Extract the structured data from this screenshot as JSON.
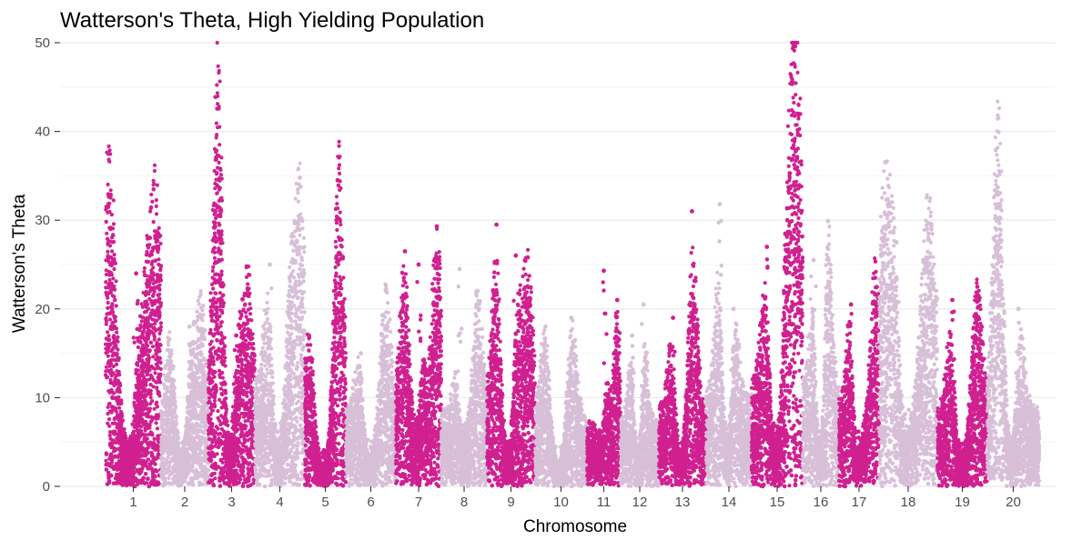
{
  "chart_data": {
    "type": "scatter",
    "title": "Watterson's Theta, High Yielding Population",
    "xlabel": "Chromosome",
    "ylabel": "Watterson's Theta",
    "ylim": [
      0,
      50
    ],
    "y_ticks": [
      0,
      10,
      20,
      30,
      40,
      50
    ],
    "y_minor_ticks": [
      5,
      15,
      25,
      35,
      45
    ],
    "grid": true,
    "legend": "none",
    "point_colors": [
      "#D02090",
      "#D8BFD8"
    ],
    "chromosomes": [
      {
        "label": "1",
        "color": "#D02090",
        "typical": 6,
        "peaks": [
          {
            "pos": 0.05,
            "y": 31.5
          },
          {
            "pos": 0.1,
            "y": 18
          },
          {
            "pos": 0.55,
            "y": 24
          },
          {
            "pos": 0.8,
            "y": 28
          },
          {
            "pos": 0.95,
            "y": 27
          }
        ]
      },
      {
        "label": "2",
        "color": "#D8BFD8",
        "typical": 6,
        "peaks": [
          {
            "pos": 0.2,
            "y": 15
          },
          {
            "pos": 0.6,
            "y": 18
          },
          {
            "pos": 0.85,
            "y": 19
          }
        ]
      },
      {
        "label": "3",
        "color": "#D02090",
        "typical": 7,
        "peaks": [
          {
            "pos": 0.2,
            "y": 37.3
          },
          {
            "pos": 0.25,
            "y": 35.8
          },
          {
            "pos": 0.6,
            "y": 17
          },
          {
            "pos": 0.85,
            "y": 21.5
          }
        ]
      },
      {
        "label": "4",
        "color": "#D8BFD8",
        "typical": 8,
        "peaks": [
          {
            "pos": 0.3,
            "y": 25
          },
          {
            "pos": 0.7,
            "y": 19
          },
          {
            "pos": 0.9,
            "y": 34.8
          }
        ]
      },
      {
        "label": "5",
        "color": "#D02090",
        "typical": 5,
        "peaks": [
          {
            "pos": 0.1,
            "y": 17
          },
          {
            "pos": 0.8,
            "y": 34.5
          },
          {
            "pos": 0.9,
            "y": 19
          }
        ]
      },
      {
        "label": "6",
        "color": "#D8BFD8",
        "typical": 6,
        "peaks": [
          {
            "pos": 0.3,
            "y": 15
          },
          {
            "pos": 0.8,
            "y": 22
          }
        ]
      },
      {
        "label": "7",
        "color": "#D02090",
        "typical": 7,
        "peaks": [
          {
            "pos": 0.2,
            "y": 26.5
          },
          {
            "pos": 0.5,
            "y": 25
          },
          {
            "pos": 0.9,
            "y": 29.3
          }
        ]
      },
      {
        "label": "8",
        "color": "#D8BFD8",
        "typical": 6,
        "peaks": [
          {
            "pos": 0.4,
            "y": 24.5
          },
          {
            "pos": 0.8,
            "y": 22
          }
        ]
      },
      {
        "label": "9",
        "color": "#D02090",
        "typical": 6,
        "peaks": [
          {
            "pos": 0.2,
            "y": 29.5
          },
          {
            "pos": 0.6,
            "y": 26
          },
          {
            "pos": 0.85,
            "y": 25.8
          }
        ]
      },
      {
        "label": "10",
        "color": "#D8BFD8",
        "typical": 5,
        "peaks": [
          {
            "pos": 0.2,
            "y": 18
          },
          {
            "pos": 0.7,
            "y": 19
          }
        ]
      },
      {
        "label": "11",
        "color": "#D02090",
        "typical": 5,
        "peaks": [
          {
            "pos": 0.5,
            "y": 24.3
          },
          {
            "pos": 0.9,
            "y": 21
          }
        ]
      },
      {
        "label": "12",
        "color": "#D8BFD8",
        "typical": 5,
        "peaks": [
          {
            "pos": 0.3,
            "y": 17
          },
          {
            "pos": 0.6,
            "y": 20.5
          }
        ]
      },
      {
        "label": "13",
        "color": "#D02090",
        "typical": 6,
        "peaks": [
          {
            "pos": 0.3,
            "y": 19
          },
          {
            "pos": 0.7,
            "y": 31
          }
        ]
      },
      {
        "label": "14",
        "color": "#D8BFD8",
        "typical": 7,
        "peaks": [
          {
            "pos": 0.3,
            "y": 31.8
          },
          {
            "pos": 0.6,
            "y": 20
          }
        ]
      },
      {
        "label": "15",
        "color": "#D02090",
        "typical": 8,
        "peaks": [
          {
            "pos": 0.3,
            "y": 27
          },
          {
            "pos": 0.7,
            "y": 30
          },
          {
            "pos": 0.85,
            "y": 32.8
          },
          {
            "pos": 0.9,
            "y": 31.5
          }
        ]
      },
      {
        "label": "16",
        "color": "#D8BFD8",
        "typical": 8,
        "peaks": [
          {
            "pos": 0.3,
            "y": 25.5
          },
          {
            "pos": 0.7,
            "y": 29.9
          }
        ]
      },
      {
        "label": "17",
        "color": "#D02090",
        "typical": 7,
        "peaks": [
          {
            "pos": 0.3,
            "y": 20.5
          },
          {
            "pos": 0.9,
            "y": 23.5
          }
        ]
      },
      {
        "label": "18",
        "color": "#D8BFD8",
        "typical": 10,
        "peaks": [
          {
            "pos": 0.1,
            "y": 29.3
          },
          {
            "pos": 0.3,
            "y": 27.5
          },
          {
            "pos": 0.85,
            "y": 28.5
          }
        ]
      },
      {
        "label": "19",
        "color": "#D02090",
        "typical": 6,
        "peaks": [
          {
            "pos": 0.3,
            "y": 21
          },
          {
            "pos": 0.8,
            "y": 22.5
          }
        ]
      },
      {
        "label": "20",
        "color": "#D8BFD8",
        "typical": 6,
        "peaks": [
          {
            "pos": 0.2,
            "y": 33.7
          },
          {
            "pos": 0.25,
            "y": 30.2
          },
          {
            "pos": 0.6,
            "y": 20
          }
        ]
      }
    ]
  }
}
